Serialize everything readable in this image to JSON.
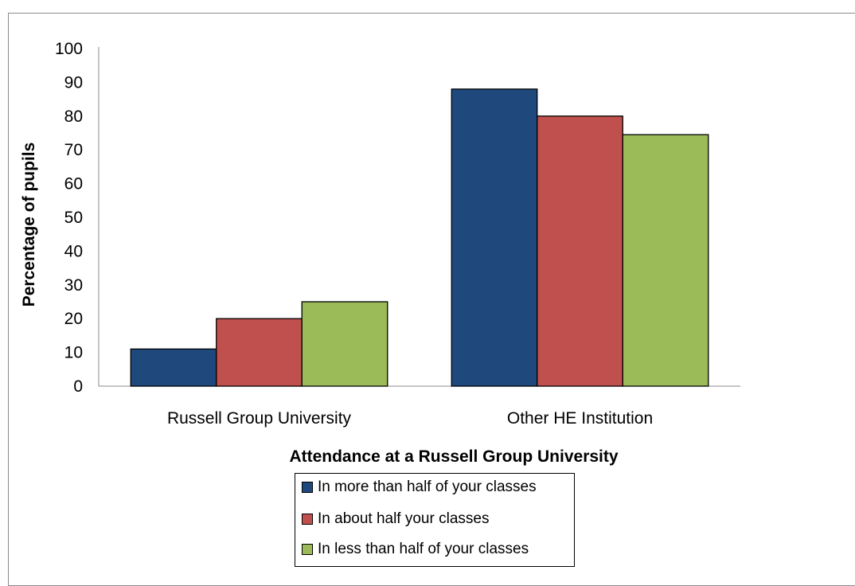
{
  "chart_data": {
    "type": "bar",
    "title": "",
    "xlabel": "Attendance at a Russell Group University",
    "ylabel": "Percentage of pupils",
    "ylim": [
      0,
      100
    ],
    "yticks": [
      "0",
      "10",
      "20",
      "30",
      "40",
      "50",
      "60",
      "70",
      "80",
      "90",
      "100"
    ],
    "categories": [
      "Russell Group University",
      "Other HE Institution"
    ],
    "series": [
      {
        "name": "In more than half of your classes",
        "color": "#1f497d",
        "values": [
          11,
          88
        ]
      },
      {
        "name": "In about half your classes",
        "color": "#c0504d",
        "values": [
          20,
          80
        ]
      },
      {
        "name": "In less than half of your classes",
        "color": "#9bbb59",
        "values": [
          25,
          74.5
        ]
      }
    ],
    "grid": false,
    "legend_position": "bottom"
  }
}
